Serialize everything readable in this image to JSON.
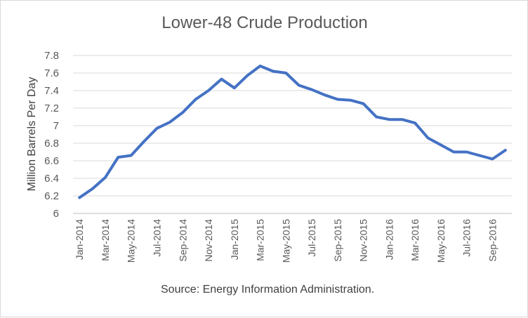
{
  "chart_data": {
    "type": "line",
    "title": "Lower-48 Crude Production",
    "ylabel": "Million Barrels Per Day",
    "xlabel": "",
    "source": "Source: Energy Information Administration.",
    "ylim": [
      6,
      7.8
    ],
    "yticks": [
      "6",
      "6.2",
      "6.4",
      "6.6",
      "6.8",
      "7",
      "7.2",
      "7.4",
      "7.6",
      "7.8"
    ],
    "grid": true,
    "legend": "none",
    "line_color": "#4472c4",
    "x": [
      "Jan-2014",
      "Feb-2014",
      "Mar-2014",
      "Apr-2014",
      "May-2014",
      "Jun-2014",
      "Jul-2014",
      "Aug-2014",
      "Sep-2014",
      "Oct-2014",
      "Nov-2014",
      "Dec-2014",
      "Jan-2015",
      "Feb-2015",
      "Mar-2015",
      "Apr-2015",
      "May-2015",
      "Jun-2015",
      "Jul-2015",
      "Aug-2015",
      "Sep-2015",
      "Oct-2015",
      "Nov-2015",
      "Dec-2015",
      "Jan-2016",
      "Feb-2016",
      "Mar-2016",
      "Apr-2016",
      "May-2016",
      "Jun-2016",
      "Jul-2016",
      "Aug-2016",
      "Sep-2016",
      "Oct-2016"
    ],
    "xtick_labels": [
      "Jan-2014",
      "Mar-2014",
      "May-2014",
      "Jul-2014",
      "Sep-2014",
      "Nov-2014",
      "Jan-2015",
      "Mar-2015",
      "May-2015",
      "Jul-2015",
      "Sep-2015",
      "Nov-2015",
      "Jan-2016",
      "Mar-2016",
      "May-2016",
      "Jul-2016",
      "Sep-2016"
    ],
    "series": [
      {
        "values": [
          6.18,
          6.28,
          6.41,
          6.64,
          6.66,
          6.82,
          6.97,
          7.04,
          7.15,
          7.3,
          7.4,
          7.53,
          7.43,
          7.57,
          7.68,
          7.62,
          7.6,
          7.46,
          7.41,
          7.35,
          7.3,
          7.29,
          7.25,
          7.1,
          7.07,
          7.07,
          7.03,
          6.86,
          6.78,
          6.7,
          6.7,
          6.66,
          6.62,
          6.72
        ]
      }
    ]
  }
}
